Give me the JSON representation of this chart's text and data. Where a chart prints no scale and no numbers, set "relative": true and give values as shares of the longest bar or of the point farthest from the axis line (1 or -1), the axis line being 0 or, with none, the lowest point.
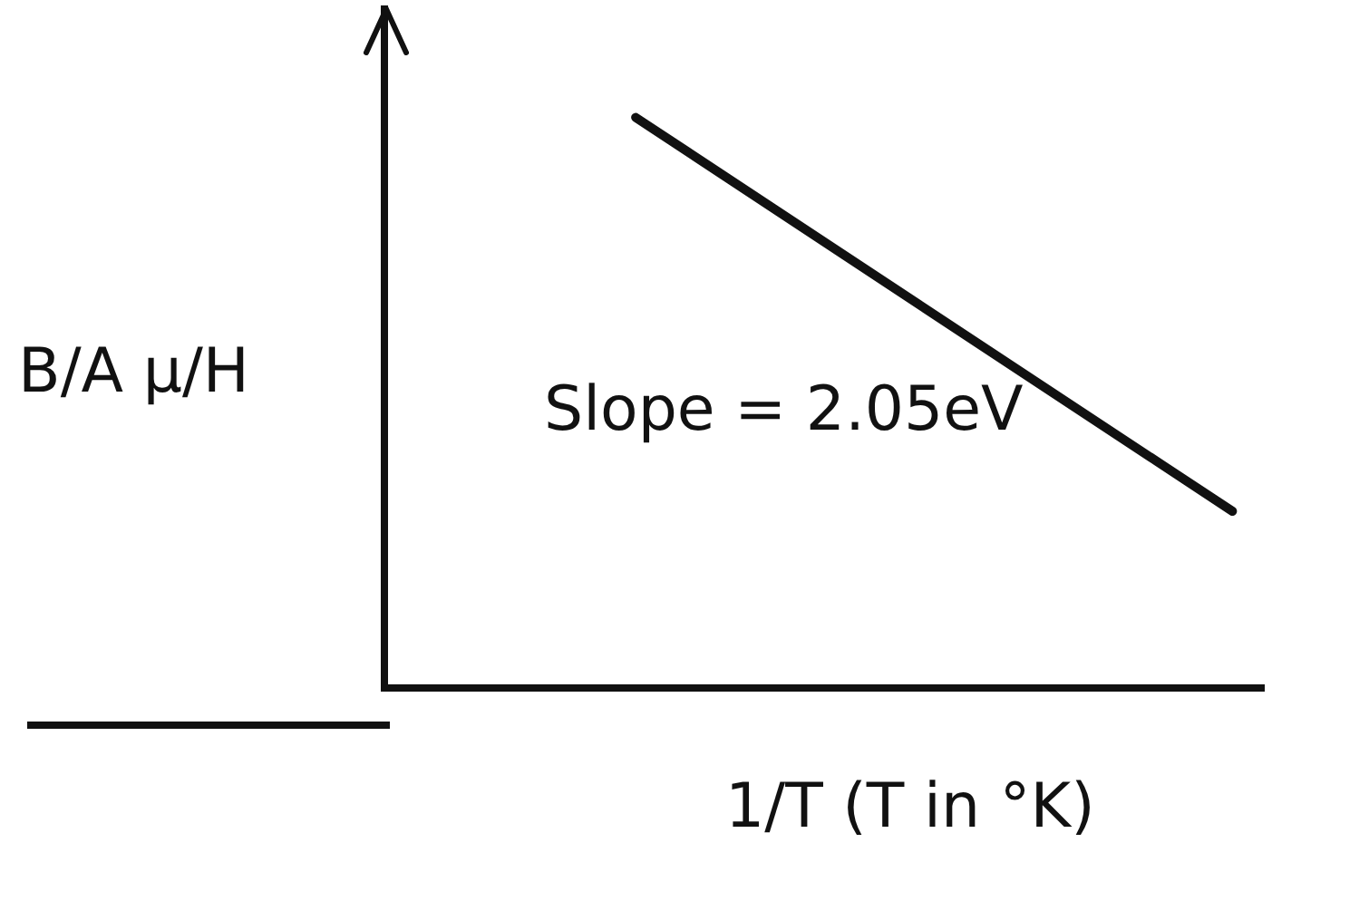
{
  "chart_data": {
    "type": "line",
    "relative": true,
    "ylabel": "B/A μ/H",
    "xlabel": "1/T (T in °K)",
    "annotations": [
      "Slope = 2.05eV"
    ],
    "categories": [
      null,
      null,
      null,
      null,
      null,
      null,
      null,
      null,
      null,
      null,
      null,
      null,
      null,
      null,
      null,
      null,
      null,
      null,
      null,
      null,
      null,
      null,
      null,
      null,
      null,
      null,
      null,
      null,
      null
    ],
    "series": [
      {
        "color": "#111111",
        "values": [
          null,
          null,
          null,
          null,
          null,
          null,
          null,
          null,
          1,
          null,
          null,
          null,
          null,
          null,
          null,
          null,
          null,
          null,
          null,
          null,
          null,
          null,
          null,
          null,
          null,
          null,
          null,
          0.31,
          null
        ]
      }
    ],
    "marker": "none",
    "grid": false,
    "legend": false
  }
}
